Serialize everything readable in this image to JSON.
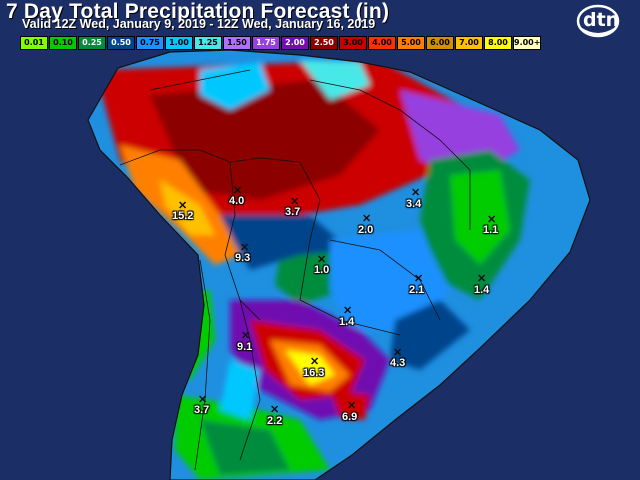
{
  "header": {
    "title": "7 Day Total Precipitation Forecast (in)",
    "subtitle": "Valid 12Z Wed, January 9, 2019 - 12Z Wed, January 16, 2019"
  },
  "legend": {
    "items": [
      {
        "label": "0.01",
        "color": "#7fff00"
      },
      {
        "label": "0.10",
        "color": "#00cc00"
      },
      {
        "label": "0.25",
        "color": "#008c3c"
      },
      {
        "label": "0.50",
        "color": "#00448c"
      },
      {
        "label": "0.75",
        "color": "#1e90ff"
      },
      {
        "label": "1.00",
        "color": "#00c8ff"
      },
      {
        "label": "1.25",
        "color": "#48e8e8"
      },
      {
        "label": "1.50",
        "color": "#b070ff"
      },
      {
        "label": "1.75",
        "color": "#9640e0"
      },
      {
        "label": "2.00",
        "color": "#7010b0"
      },
      {
        "label": "2.50",
        "color": "#8c0000"
      },
      {
        "label": "3.00",
        "color": "#cc0000"
      },
      {
        "label": "4.00",
        "color": "#ff3000"
      },
      {
        "label": "5.00",
        "color": "#ff8000"
      },
      {
        "label": "6.00",
        "color": "#d09000"
      },
      {
        "label": "7.00",
        "color": "#ffc000"
      },
      {
        "label": "8.00",
        "color": "#ffff00"
      },
      {
        "label": "9.00+",
        "color": "#ffffc0"
      }
    ]
  },
  "logo": {
    "text": "dtn"
  },
  "markers": [
    {
      "label": "15.2"
    },
    {
      "label": "4.0"
    },
    {
      "label": "3.7"
    },
    {
      "label": "3.4"
    },
    {
      "label": "2.0"
    },
    {
      "label": "1.1"
    },
    {
      "label": "9.3"
    },
    {
      "label": "1.0"
    },
    {
      "label": "2.1"
    },
    {
      "label": "1.4"
    },
    {
      "label": "1.4"
    },
    {
      "label": "9.1"
    },
    {
      "label": "4.3"
    },
    {
      "label": "16.3"
    },
    {
      "label": "3.7"
    },
    {
      "label": "2.2"
    },
    {
      "label": "6.9"
    }
  ]
}
